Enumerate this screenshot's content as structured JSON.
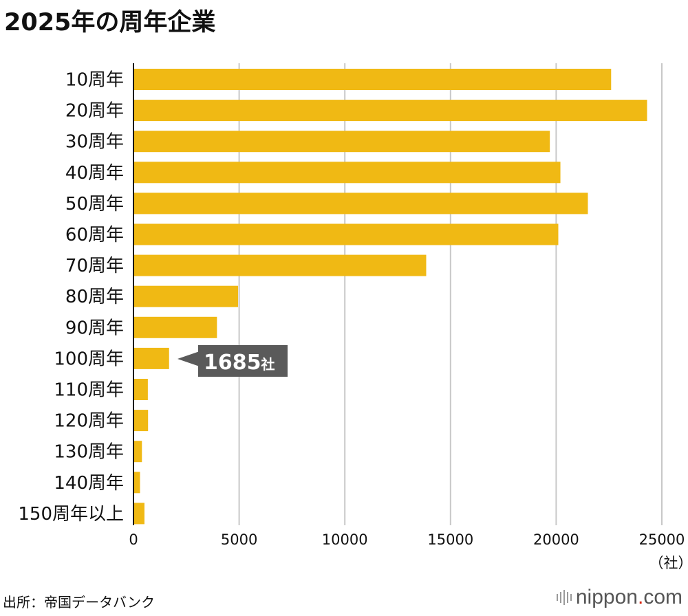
{
  "title": "2025年の周年企業",
  "source": "出所：帝国データバンク",
  "logo": {
    "name": "nippon",
    "dot": ".",
    "suffix": "com",
    "dot_color": "#d81e05"
  },
  "chart_data": {
    "type": "bar",
    "orientation": "horizontal",
    "title": "2025年の周年企業",
    "categories": [
      "10周年",
      "20周年",
      "30周年",
      "40周年",
      "50周年",
      "60周年",
      "70周年",
      "80周年",
      "90周年",
      "100周年",
      "110周年",
      "120周年",
      "130周年",
      "140周年",
      "150周年以上"
    ],
    "values": [
      22600,
      24300,
      19700,
      20200,
      21500,
      20100,
      13850,
      4950,
      3950,
      1685,
      680,
      690,
      400,
      310,
      520
    ],
    "xlim": [
      0,
      25000
    ],
    "xticks": [
      0,
      5000,
      10000,
      15000,
      20000,
      25000
    ],
    "xtick_labels": [
      "0",
      "5000",
      "10000",
      "15000",
      "20000",
      "25000"
    ],
    "unit_label": "（社）",
    "grid": true,
    "bar_color": "#f0b914",
    "annotation": {
      "category": "100周年",
      "value_text": "1685",
      "unit_text": "社",
      "color": "#5a5a5a"
    }
  }
}
